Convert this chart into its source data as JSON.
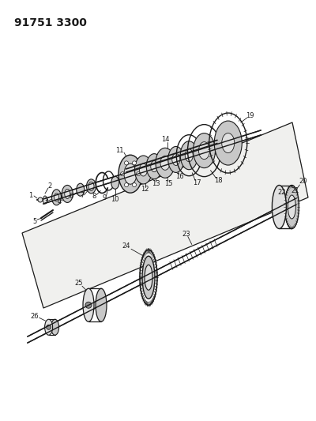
{
  "title": "91751 3300",
  "bg_color": "#ffffff",
  "line_color": "#1a1a1a",
  "gray_fill": "#c8c8c8",
  "light_gray": "#e0e0e0",
  "dark_gray": "#909090",
  "figsize": [
    4.0,
    5.33
  ],
  "dpi": 100
}
